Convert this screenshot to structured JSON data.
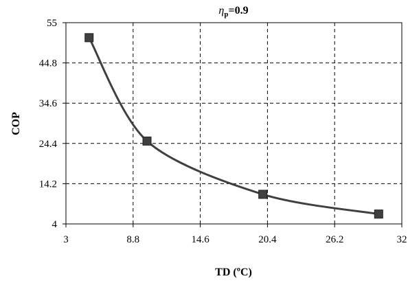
{
  "chart_data": {
    "type": "line",
    "title": {
      "symbol": "η",
      "subscript": "p",
      "rest": "=0.9"
    },
    "xlabel": "TD (ºC)",
    "ylabel": "COP",
    "xlim": [
      3,
      32
    ],
    "ylim": [
      4,
      55
    ],
    "xticks": [
      "3",
      "8.8",
      "14.6",
      "20.4",
      "26.2",
      "32"
    ],
    "yticks": [
      "4",
      "14.2",
      "24.4",
      "34.6",
      "44.8",
      "55"
    ],
    "grid": true,
    "series": [
      {
        "x": [
          5,
          10,
          20,
          30
        ],
        "y": [
          51.2,
          25.0,
          11.5,
          6.5
        ],
        "color": "#404040",
        "marker": "square"
      }
    ]
  }
}
